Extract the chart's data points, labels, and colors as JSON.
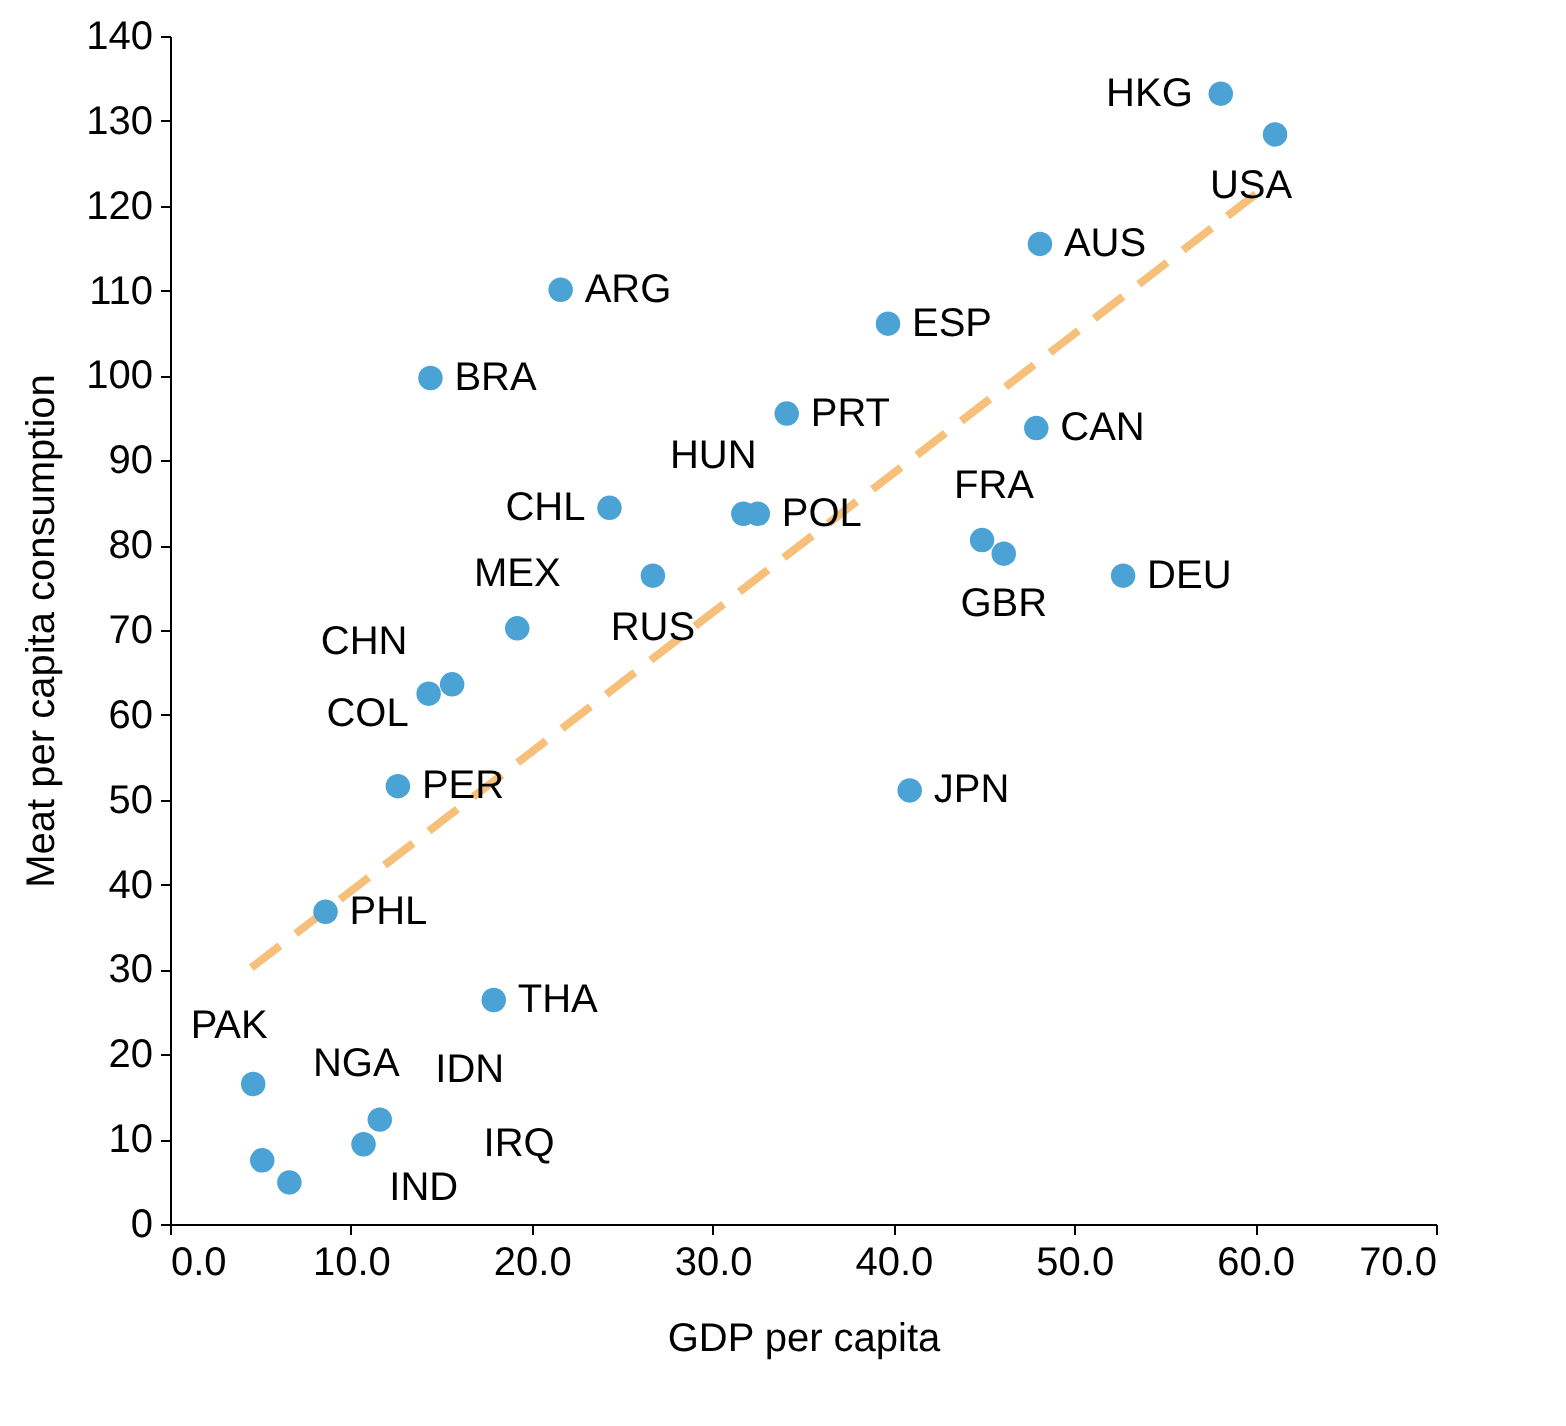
{
  "chart_data": {
    "type": "scatter",
    "xlabel": "GDP per capita",
    "ylabel": "Meat per capita consumption",
    "xlim": [
      0,
      70
    ],
    "ylim": [
      0,
      140
    ],
    "xticks": [
      {
        "value": 0,
        "label": "0.0"
      },
      {
        "value": 10,
        "label": "10.0"
      },
      {
        "value": 20,
        "label": "20.0"
      },
      {
        "value": 30,
        "label": "30.0"
      },
      {
        "value": 40,
        "label": "40.0"
      },
      {
        "value": 50,
        "label": "50.0"
      },
      {
        "value": 60,
        "label": "60.0"
      },
      {
        "value": 70,
        "label": "70.0"
      }
    ],
    "yticks": [
      0,
      10,
      20,
      30,
      40,
      50,
      60,
      70,
      80,
      90,
      100,
      110,
      120,
      130,
      140
    ],
    "grid": false,
    "marker": "circle",
    "series": [
      {
        "type": "line",
        "color": "#f7c07a",
        "line_style": "dashed",
        "marker": "none",
        "x": [
          4.5,
          60.3
        ],
        "values": [
          30.2,
          121.8
        ]
      },
      {
        "color": "#4aa3d4",
        "x": [
          58.1,
          61.1,
          48.1,
          21.6,
          39.7,
          14.4,
          34.1,
          47.9,
          24.3,
          31.7,
          32.5,
          44.9,
          46.1,
          52.7,
          26.7,
          19.2,
          15.6,
          14.3,
          12.6,
          40.9,
          8.6,
          17.9,
          4.6,
          5.1,
          11.6,
          10.7,
          6.6
        ],
        "values": [
          133.2,
          128.4,
          115.5,
          110.1,
          106.1,
          99.7,
          95.5,
          93.8,
          84.4,
          83.7,
          83.7,
          80.6,
          79.0,
          76.4,
          76.4,
          70.2,
          63.6,
          62.5,
          51.6,
          51.1,
          36.8,
          26.4,
          16.5,
          7.5,
          12.3,
          9.4,
          4.9
        ]
      }
    ],
    "annotations": [
      {
        "text": "HKG",
        "x": 58.1,
        "y": 133.2
      },
      {
        "text": "USA",
        "x": 61.1,
        "y": 128.4
      },
      {
        "text": "AUS",
        "x": 48.1,
        "y": 115.5
      },
      {
        "text": "ARG",
        "x": 21.6,
        "y": 110.1
      },
      {
        "text": "ESP",
        "x": 39.7,
        "y": 106.1
      },
      {
        "text": "BRA",
        "x": 14.4,
        "y": 99.7
      },
      {
        "text": "PRT",
        "x": 34.1,
        "y": 95.5
      },
      {
        "text": "CAN",
        "x": 47.9,
        "y": 93.8
      },
      {
        "text": "CHL",
        "x": 24.3,
        "y": 84.4
      },
      {
        "text": "HUN",
        "x": 31.7,
        "y": 83.7
      },
      {
        "text": "POL",
        "x": 32.5,
        "y": 83.7
      },
      {
        "text": "FRA",
        "x": 44.9,
        "y": 80.6
      },
      {
        "text": "GBR",
        "x": 46.1,
        "y": 79.0
      },
      {
        "text": "DEU",
        "x": 52.7,
        "y": 76.4
      },
      {
        "text": "RUS",
        "x": 26.7,
        "y": 76.4
      },
      {
        "text": "MEX",
        "x": 19.2,
        "y": 70.2
      },
      {
        "text": "CHN",
        "x": 15.6,
        "y": 63.6
      },
      {
        "text": "COL",
        "x": 14.3,
        "y": 62.5
      },
      {
        "text": "PER",
        "x": 12.6,
        "y": 51.6
      },
      {
        "text": "JPN",
        "x": 40.9,
        "y": 51.1
      },
      {
        "text": "PHL",
        "x": 8.6,
        "y": 36.8
      },
      {
        "text": "THA",
        "x": 17.9,
        "y": 26.4
      },
      {
        "text": "PAK",
        "x": 4.6,
        "y": 16.5
      },
      {
        "text": "NGA",
        "x": 5.1,
        "y": 7.5
      },
      {
        "text": "IDN",
        "x": 11.6,
        "y": 12.3
      },
      {
        "text": "IRQ",
        "x": 10.7,
        "y": 9.4
      },
      {
        "text": "IND",
        "x": 6.6,
        "y": 4.9
      }
    ]
  }
}
